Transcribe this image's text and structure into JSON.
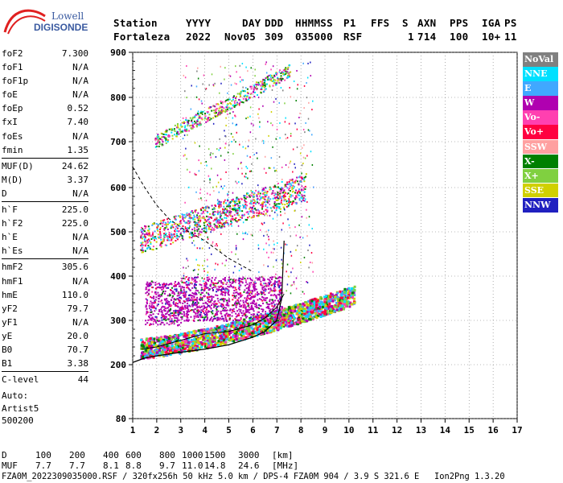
{
  "logo": {
    "line1": "Lowell",
    "line2": "DIGISONDE"
  },
  "header": {
    "labels": [
      "Station",
      "YYYY",
      "DAY",
      "DDD",
      "HHMMSS",
      "P1",
      "FFS",
      "S",
      "AXN",
      "PPS",
      "IGA",
      "PS"
    ],
    "values": [
      "Fortaleza",
      "2022",
      "Nov05",
      "309",
      "035000",
      "RSF",
      "",
      "1",
      "714",
      "100",
      "10+",
      "11"
    ]
  },
  "params": [
    [
      {
        "name": "foF2",
        "value": "7.300"
      },
      {
        "name": "foF1",
        "value": "N/A"
      },
      {
        "name": "foF1p",
        "value": "N/A"
      },
      {
        "name": "foE",
        "value": "N/A"
      },
      {
        "name": "foEp",
        "value": "0.52"
      },
      {
        "name": "fxI",
        "value": "7.40"
      },
      {
        "name": "foEs",
        "value": "N/A"
      },
      {
        "name": "fmin",
        "value": "1.35"
      }
    ],
    [
      {
        "name": "MUF(D)",
        "value": "24.62"
      },
      {
        "name": "M(D)",
        "value": "3.37"
      },
      {
        "name": "D",
        "value": "N/A"
      }
    ],
    [
      {
        "name": "h`F",
        "value": "225.0"
      },
      {
        "name": "h`F2",
        "value": "225.0"
      },
      {
        "name": "h`E",
        "value": "N/A"
      },
      {
        "name": "h`Es",
        "value": "N/A"
      }
    ],
    [
      {
        "name": "hmF2",
        "value": "305.6"
      },
      {
        "name": "hmF1",
        "value": "N/A"
      },
      {
        "name": "hmE",
        "value": "110.0"
      },
      {
        "name": "yF2",
        "value": "79.7"
      },
      {
        "name": "yF1",
        "value": "N/A"
      },
      {
        "name": "yE",
        "value": "20.0"
      },
      {
        "name": "B0",
        "value": "70.7"
      },
      {
        "name": "B1",
        "value": "3.38"
      }
    ],
    [
      {
        "name": "C-level",
        "value": "44"
      }
    ]
  ],
  "auto": {
    "line1": "Auto:",
    "line2": "Artist5",
    "line3": "500200"
  },
  "legend": [
    {
      "label": "NoVal",
      "color": "#808080"
    },
    {
      "label": "NNE",
      "color": "#00e0ff"
    },
    {
      "label": "E",
      "color": "#40a8ff"
    },
    {
      "label": "W",
      "color": "#b000b0"
    },
    {
      "label": "Vo-",
      "color": "#ff40b0"
    },
    {
      "label": "Vo+",
      "color": "#ff0040"
    },
    {
      "label": "SSW",
      "color": "#ffa0a0"
    },
    {
      "label": "X-",
      "color": "#008000"
    },
    {
      "label": "X+",
      "color": "#80d040"
    },
    {
      "label": "SSE",
      "color": "#d0d000"
    },
    {
      "label": "NNW",
      "color": "#2020c0"
    }
  ],
  "bottom": {
    "d_label": "D",
    "d_values": [
      "100",
      "200",
      "400",
      "600",
      "800",
      "1000",
      "1500",
      "3000",
      "[km]"
    ],
    "muf_label": "MUF",
    "muf_values": [
      "7.7",
      "7.7",
      "8.1",
      "8.8",
      "9.7",
      "11.0",
      "14.8",
      "24.6",
      "[MHz]"
    ],
    "footer": "FZA0M_2022309035000.RSF / 320fx256h 50 kHz 5.0 km / DPS-4 FZA0M 904 / 3.9 S 321.6 E   Ion2Png 1.3.20"
  },
  "chart_data": {
    "type": "scatter",
    "title": "",
    "xlabel": "",
    "ylabel": "",
    "xlim": [
      1,
      17
    ],
    "ylim": [
      80,
      900
    ],
    "xticks": [
      "1",
      "2",
      "3",
      "4",
      "5",
      "6",
      "7",
      "8",
      "9",
      "10",
      "11",
      "12",
      "13",
      "14",
      "15",
      "16",
      "17"
    ],
    "yticks": [
      {
        "value": 80,
        "label": "80"
      },
      {
        "value": 200,
        "label": "200"
      },
      {
        "value": 300,
        "label": "300"
      },
      {
        "value": 400,
        "label": "400"
      },
      {
        "value": 500,
        "label": "500"
      },
      {
        "value": 600,
        "label": "600"
      },
      {
        "value": 700,
        "label": "700"
      },
      {
        "value": 800,
        "label": "800"
      },
      {
        "value": 900,
        "label": "900"
      }
    ],
    "grid": true,
    "legend_position": "right",
    "trace_bands": [
      {
        "name": "F trace",
        "x_range": [
          1.3,
          10.2
        ],
        "h_start": 230,
        "h_end": 350
      },
      {
        "name": "2F echo",
        "x_range": [
          1.3,
          8.2
        ],
        "h_start": 470,
        "h_end": 590
      },
      {
        "name": "3F echo",
        "x_range": [
          1.9,
          7.5
        ],
        "h_start": 700,
        "h_end": 860
      },
      {
        "name": "spread F",
        "x_range": [
          1.5,
          7.2
        ],
        "h_start": 300,
        "h_end": 400
      }
    ],
    "profile_curve": {
      "x": [
        1.0,
        1.5,
        2.0,
        3.0,
        4.0,
        5.0,
        6.0,
        6.5,
        7.0,
        7.2,
        7.3
      ],
      "y": [
        205,
        215,
        220,
        228,
        235,
        245,
        262,
        275,
        300,
        350,
        480
      ]
    },
    "virtual_height_curve": {
      "x": [
        1.35,
        2.0,
        3.0,
        4.0,
        5.0,
        6.0,
        6.5,
        7.0,
        7.3
      ],
      "y": [
        235,
        240,
        255,
        270,
        275,
        290,
        305,
        330,
        360
      ]
    },
    "dashed_curve": {
      "x": [
        1.0,
        1.5,
        2.0,
        2.5,
        3.0,
        4.0,
        5.0,
        6.0
      ],
      "y": [
        645,
        600,
        560,
        530,
        510,
        480,
        440,
        410
      ]
    }
  }
}
